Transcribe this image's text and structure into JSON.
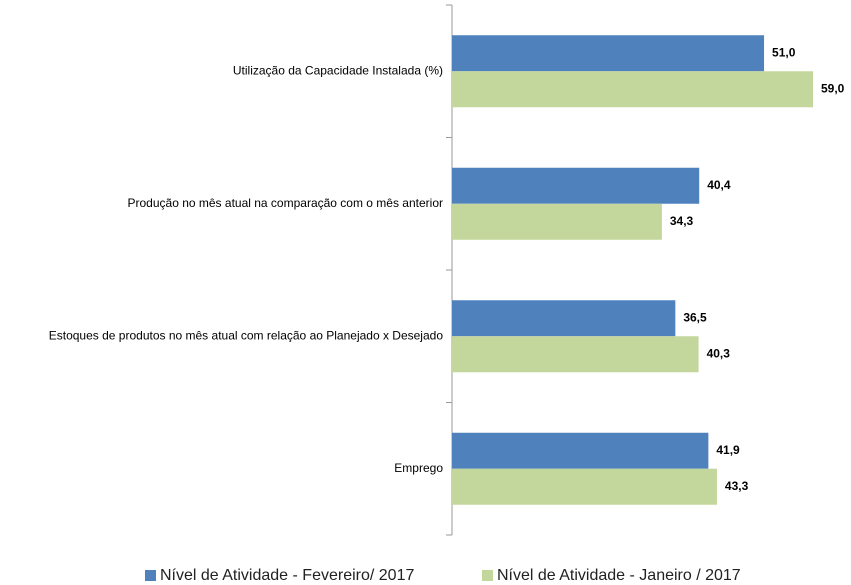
{
  "chart_data": {
    "type": "barh",
    "categories": [
      "Utilização da Capacidade Instalada (%)",
      "Produção no mês atual na comparação com o mês anterior",
      "Estoques de produtos no mês atual com relação ao Planejado x Desejado",
      "Emprego"
    ],
    "series": [
      {
        "name": "Nível de Atividade - Fevereiro/ 2017",
        "color": "#4f81bd",
        "values": [
          51.0,
          40.4,
          36.5,
          41.9
        ],
        "value_labels": [
          "51,0",
          "40,4",
          "36,5",
          "41,9"
        ]
      },
      {
        "name": "Nível de Atividade - Janeiro / 2017",
        "color": "#c3d69b",
        "values": [
          59.0,
          34.3,
          40.3,
          43.3
        ],
        "value_labels": [
          "59,0",
          "34,3",
          "40,3",
          "43,3"
        ]
      }
    ],
    "legend": "bottom"
  }
}
